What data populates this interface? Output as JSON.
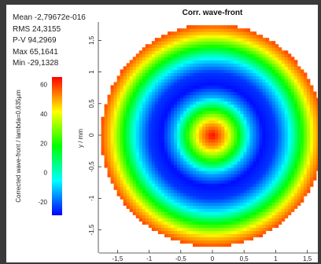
{
  "stats": {
    "mean": "Mean -2,79672e-016",
    "rms": "RMS 24,3155",
    "pv": "P-V 94,2969",
    "max": "Max 65,1641",
    "min": "Min -29,1328"
  },
  "chart_data": {
    "type": "heatmap",
    "title": "Corr. wave-front",
    "xlabel": "",
    "ylabel": "y / mm",
    "xlim": [
      -1.8,
      1.8
    ],
    "ylim": [
      -1.8,
      1.8
    ],
    "x_ticks": [
      "-1,5",
      "-1",
      "-0,5",
      "0",
      "0,5",
      "1",
      "1,5"
    ],
    "x_tick_values": [
      -1.5,
      -1,
      -0.5,
      0,
      0.5,
      1,
      1.5
    ],
    "y_ticks": [
      "1,5",
      "1",
      "0,5",
      "0",
      "-0,5",
      "-1",
      "-1,5"
    ],
    "y_tick_values": [
      1.5,
      1,
      0.5,
      0,
      -0.5,
      -1,
      -1.5
    ],
    "aperture_radius": 1.76,
    "radial_profile": {
      "r": [
        0,
        0.2,
        0.4,
        0.6,
        0.8,
        1.0,
        1.2,
        1.4,
        1.6,
        1.76
      ],
      "value": [
        65,
        48,
        20,
        -12,
        -28,
        -24,
        -8,
        18,
        45,
        58
      ]
    },
    "colorbar": {
      "label": "Corrected wave-front / lambda=0,635µm",
      "ticks": [
        "60",
        "40",
        "20",
        "0",
        "-20"
      ],
      "tick_values": [
        60,
        40,
        20,
        0,
        -20
      ],
      "range": [
        -29.1328,
        65.1641
      ],
      "colors": [
        "#0000ff",
        "#00ffff",
        "#00ff00",
        "#ffff00",
        "#ff0000"
      ]
    },
    "grid": false
  }
}
